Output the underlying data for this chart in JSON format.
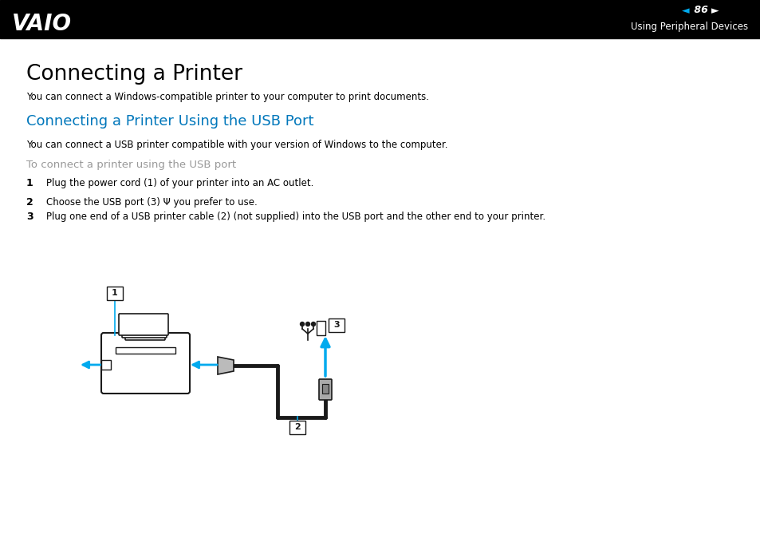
{
  "bg_color": "#ffffff",
  "header_bg": "#000000",
  "page_number": "86",
  "header_right_text": "Using Peripheral Devices",
  "title": "Connecting a Printer",
  "subtitle_blue": "Connecting a Printer Using the USB Port",
  "blue_color": "#0077bb",
  "gray_color": "#999999",
  "black_color": "#000000",
  "body_text1": "You can connect a Windows-compatible printer to your computer to print documents.",
  "body_text2": "You can connect a USB printer compatible with your version of Windows to the computer.",
  "gray_label": "To connect a printer using the USB port",
  "step1_num": "1",
  "step1_text": "Plug the power cord (1) of your printer into an AC outlet.",
  "step2_num": "2",
  "step2_text": "Choose the USB port (3) Ψ you prefer to use.",
  "step3_num": "3",
  "step3_text": "Plug one end of a USB printer cable (2) (not supplied) into the USB port and the other end to your printer.",
  "cyan_color": "#00aaee",
  "dark_color": "#1a1a1a",
  "cable_color": "#111111"
}
